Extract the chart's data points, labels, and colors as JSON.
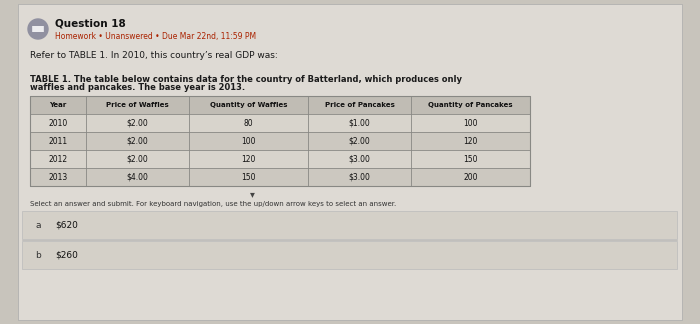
{
  "question_number": "Question 18",
  "homework_line": "Homework • Unanswered • Due Mar 22nd, 11:59 PM",
  "question_text": "Refer to TABLE 1. In 2010, this country’s real GDP was:",
  "table_title_line1": "TABLE 1. The table below contains data for the country of Batterland, which produces only",
  "table_title_line2": "waffles and pancakes. The base year is 2013.",
  "table_headers": [
    "Year",
    "Price of Waffles",
    "Quantity of Waffles",
    "Price of Pancakes",
    "Quantity of Pancakes"
  ],
  "table_rows": [
    [
      "2010",
      "$2.00",
      "80",
      "$1.00",
      "100"
    ],
    [
      "2011",
      "$2.00",
      "100",
      "$2.00",
      "120"
    ],
    [
      "2012",
      "$2.00",
      "120",
      "$3.00",
      "150"
    ],
    [
      "2013",
      "$4.00",
      "150",
      "$3.00",
      "200"
    ]
  ],
  "submit_text": "Select an answer and submit. For keyboard navigation, use the up/down arrow keys to select an answer.",
  "answer_a_label": "a",
  "answer_a_val": "$620",
  "answer_b_label": "b",
  "answer_b_val": "$260",
  "bg_color": "#c8c4bc",
  "panel_bg": "#dedad4",
  "table_header_bg": "#c0bcb4",
  "table_row_bg": "#d8d4cc",
  "table_alt_bg": "#ccc8c0",
  "ans_box_bg": "#d4d0c8",
  "homework_color": "#aa2200",
  "question_title_color": "#111111",
  "body_text_color": "#1a1a1a",
  "table_text_color": "#111111",
  "icon_bg": "#9090a0",
  "icon_fg": "#ffffff",
  "grid_color": "#888884"
}
